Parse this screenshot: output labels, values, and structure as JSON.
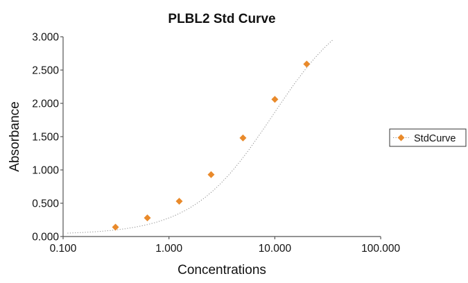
{
  "chart_data": {
    "type": "scatter",
    "title": "PLBL2 Std Curve",
    "xlabel": "Concentrations",
    "ylabel": "Absorbance",
    "xscale": "log",
    "xlim": [
      0.1,
      100
    ],
    "ylim": [
      0,
      3
    ],
    "x_ticks": [
      "0.100",
      "1.000",
      "10.000",
      "100.000"
    ],
    "y_ticks": [
      "0.000",
      "0.500",
      "1.000",
      "1.500",
      "2.000",
      "2.500",
      "3.000"
    ],
    "grid": false,
    "legend_position": "right",
    "series": [
      {
        "name": "StdCurve",
        "marker": "diamond",
        "color": "#E98A2B",
        "x": [
          0.3125,
          0.625,
          1.25,
          2.5,
          5,
          10,
          20
        ],
        "y": [
          0.14,
          0.28,
          0.53,
          0.93,
          1.48,
          2.06,
          2.59
        ],
        "trendline": {
          "style": "dotted",
          "color": "#8a8a8a",
          "x_range": [
            0.11,
            35
          ],
          "y_range": [
            0.05,
            2.88
          ]
        }
      }
    ]
  },
  "chart": {
    "title": "PLBL2 Std Curve",
    "xlabel": "Concentrations",
    "ylabel": "Absorbance",
    "legend_label": "StdCurve"
  }
}
